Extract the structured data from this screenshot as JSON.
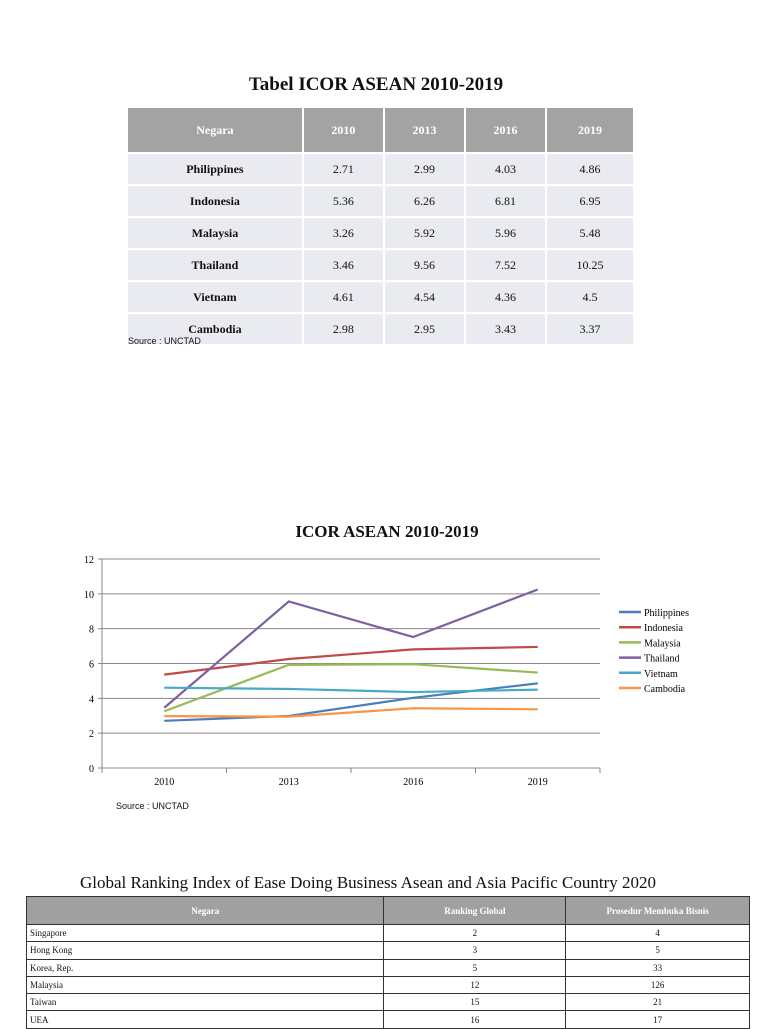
{
  "table1": {
    "title": "Tabel ICOR ASEAN 2010-2019",
    "headers": [
      "Negara",
      "2010",
      "2013",
      "2016",
      "2019"
    ],
    "rows": [
      [
        "Philippines",
        "2.71",
        "2.99",
        "4.03",
        "4.86"
      ],
      [
        "Indonesia",
        "5.36",
        "6.26",
        "6.81",
        "6.95"
      ],
      [
        "Malaysia",
        "3.26",
        "5.92",
        "5.96",
        "5.48"
      ],
      [
        "Thailand",
        "3.46",
        "9.56",
        "7.52",
        "10.25"
      ],
      [
        "Vietnam",
        "4.61",
        "4.54",
        "4.36",
        "4.5"
      ],
      [
        "Cambodia",
        "2.98",
        "2.95",
        "3.43",
        "3.37"
      ]
    ],
    "source": "Source : UNCTAD"
  },
  "chart_data": {
    "type": "line",
    "title": "ICOR ASEAN 2010-2019",
    "categories": [
      "2010",
      "2013",
      "2016",
      "2019"
    ],
    "ylim": [
      0,
      12
    ],
    "yticks": [
      "0",
      "2",
      "4",
      "6",
      "8",
      "10",
      "12"
    ],
    "grid": true,
    "legend": "right",
    "series": [
      {
        "name": "Philippines",
        "values": [
          2.71,
          2.99,
          4.03,
          4.86
        ],
        "color": "#4a7ebb"
      },
      {
        "name": "Indonesia",
        "values": [
          5.36,
          6.26,
          6.81,
          6.95
        ],
        "color": "#be4b48"
      },
      {
        "name": "Malaysia",
        "values": [
          3.26,
          5.92,
          5.96,
          5.48
        ],
        "color": "#98b954"
      },
      {
        "name": "Thailand",
        "values": [
          3.46,
          9.56,
          7.52,
          10.25
        ],
        "color": "#7d60a0"
      },
      {
        "name": "Vietnam",
        "values": [
          4.61,
          4.54,
          4.36,
          4.5
        ],
        "color": "#46aac5"
      },
      {
        "name": "Cambodia",
        "values": [
          2.98,
          2.95,
          3.43,
          3.37
        ],
        "color": "#f79646"
      }
    ],
    "source": "Source : UNCTAD"
  },
  "table2": {
    "title": "Global Ranking Index of Ease Doing Business Asean and Asia Pacific Country 2020",
    "headers": [
      "Negara",
      "Ranking Global",
      "Prosedur Membuka Bisnis"
    ],
    "rows": [
      [
        "Singapore",
        "2",
        "4"
      ],
      [
        "Hong Kong",
        "3",
        "5"
      ],
      [
        "Korea, Rep.",
        "5",
        "33"
      ],
      [
        "Malaysia",
        "12",
        "126"
      ],
      [
        "Taiwan",
        "15",
        "21"
      ],
      [
        "UEA",
        "16",
        "17"
      ]
    ]
  }
}
